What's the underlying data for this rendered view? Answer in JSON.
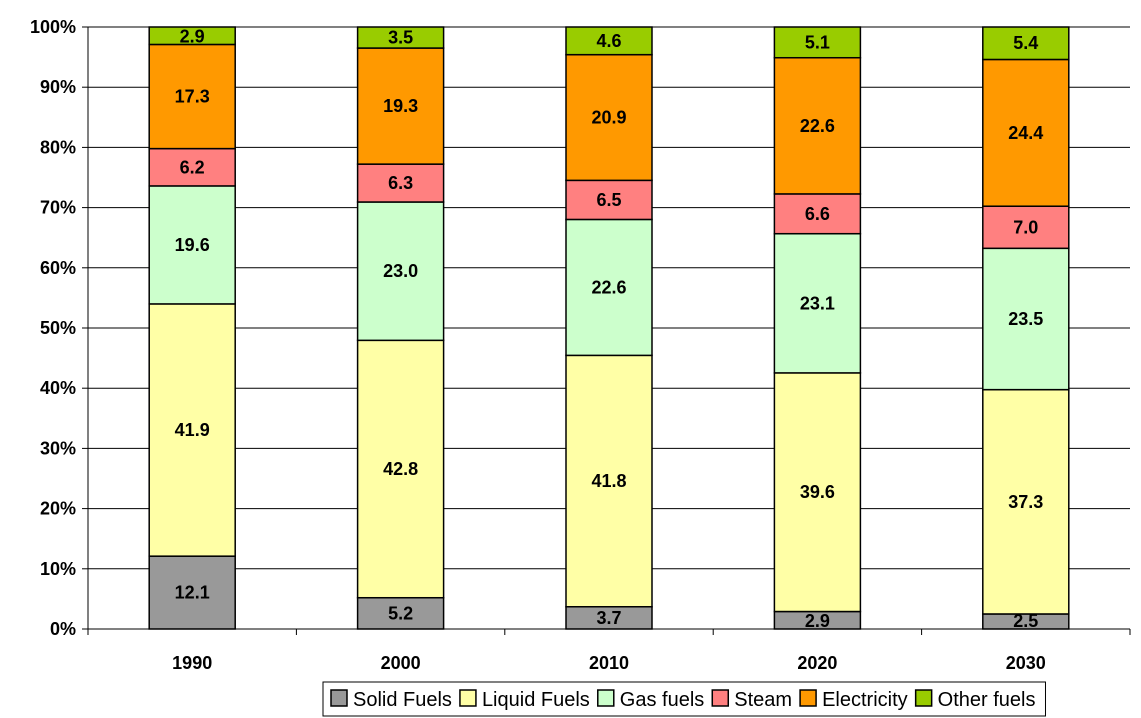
{
  "chart_data": {
    "type": "bar",
    "stacked": true,
    "percent_stacked": true,
    "categories": [
      "1990",
      "2000",
      "2010",
      "2020",
      "2030"
    ],
    "series": [
      {
        "name": "Solid Fuels",
        "color": "#999999",
        "values": [
          12.1,
          5.2,
          3.7,
          2.9,
          2.5
        ]
      },
      {
        "name": "Liquid Fuels",
        "color": "#ffffa6",
        "values": [
          41.9,
          42.8,
          41.8,
          39.6,
          37.3
        ]
      },
      {
        "name": "Gas fuels",
        "color": "#ccffcc",
        "values": [
          19.6,
          23.0,
          22.6,
          23.1,
          23.5
        ]
      },
      {
        "name": "Steam",
        "color": "#ff8080",
        "values": [
          6.2,
          6.3,
          6.5,
          6.6,
          7.0
        ]
      },
      {
        "name": "Electricity",
        "color": "#ff9900",
        "values": [
          17.3,
          19.3,
          20.9,
          22.6,
          24.4
        ]
      },
      {
        "name": "Other fuels",
        "color": "#99cc00",
        "values": [
          2.9,
          3.5,
          4.6,
          5.1,
          5.4
        ]
      }
    ],
    "yticks": [
      "0%",
      "10%",
      "20%",
      "30%",
      "40%",
      "50%",
      "60%",
      "70%",
      "80%",
      "90%",
      "100%"
    ],
    "ylim": [
      0,
      100
    ],
    "grid": true,
    "legend": "bottom"
  }
}
